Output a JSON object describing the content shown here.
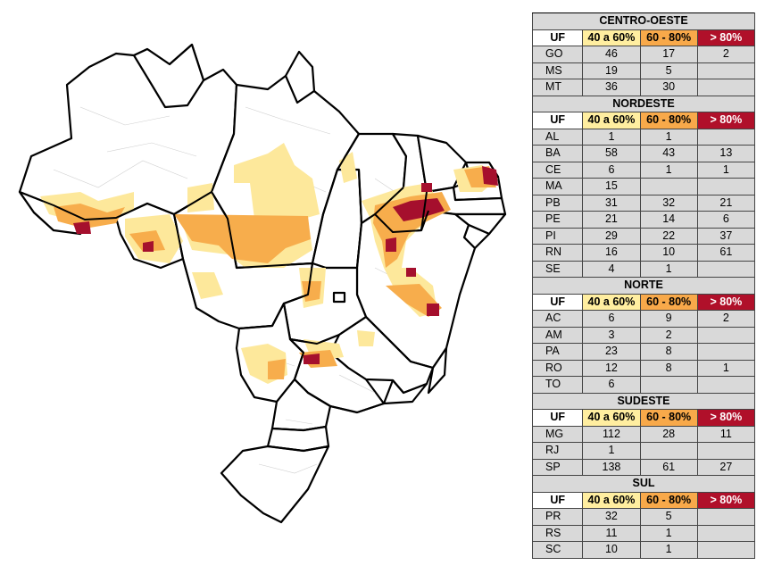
{
  "colors": {
    "class_40_60": "#fde89b",
    "class_60_80": "#f7ad4c",
    "class_80_plus": "#a50f2d",
    "state_fill": "#ffffff",
    "municipal_border": "#c8c8c8",
    "state_border": "#000000",
    "table_bg": "#d9d9d9"
  },
  "table": {
    "header": {
      "uf": "UF",
      "c1": "40 a 60%",
      "c2": "60 - 80%",
      "c3": "> 80%"
    },
    "regions": [
      {
        "name": "CENTRO-OESTE",
        "rows": [
          {
            "uf": "GO",
            "c1": "46",
            "c2": "17",
            "c3": "2"
          },
          {
            "uf": "MS",
            "c1": "19",
            "c2": "5",
            "c3": ""
          },
          {
            "uf": "MT",
            "c1": "36",
            "c2": "30",
            "c3": ""
          }
        ]
      },
      {
        "name": "NORDESTE",
        "rows": [
          {
            "uf": "AL",
            "c1": "1",
            "c2": "1",
            "c3": ""
          },
          {
            "uf": "BA",
            "c1": "58",
            "c2": "43",
            "c3": "13"
          },
          {
            "uf": "CE",
            "c1": "6",
            "c2": "1",
            "c3": "1"
          },
          {
            "uf": "MA",
            "c1": "15",
            "c2": "",
            "c3": ""
          },
          {
            "uf": "PB",
            "c1": "31",
            "c2": "32",
            "c3": "21"
          },
          {
            "uf": "PE",
            "c1": "21",
            "c2": "14",
            "c3": "6"
          },
          {
            "uf": "PI",
            "c1": "29",
            "c2": "22",
            "c3": "37"
          },
          {
            "uf": "RN",
            "c1": "16",
            "c2": "10",
            "c3": "61"
          },
          {
            "uf": "SE",
            "c1": "4",
            "c2": "1",
            "c3": ""
          }
        ]
      },
      {
        "name": "NORTE",
        "rows": [
          {
            "uf": "AC",
            "c1": "6",
            "c2": "9",
            "c3": "2"
          },
          {
            "uf": "AM",
            "c1": "3",
            "c2": "2",
            "c3": ""
          },
          {
            "uf": "PA",
            "c1": "23",
            "c2": "8",
            "c3": ""
          },
          {
            "uf": "RO",
            "c1": "12",
            "c2": "8",
            "c3": "1"
          },
          {
            "uf": "TO",
            "c1": "6",
            "c2": "",
            "c3": ""
          }
        ]
      },
      {
        "name": "SUDESTE",
        "rows": [
          {
            "uf": "MG",
            "c1": "112",
            "c2": "28",
            "c3": "11"
          },
          {
            "uf": "RJ",
            "c1": "1",
            "c2": "",
            "c3": ""
          },
          {
            "uf": "SP",
            "c1": "138",
            "c2": "61",
            "c3": "27"
          }
        ]
      },
      {
        "name": "SUL",
        "rows": [
          {
            "uf": "PR",
            "c1": "32",
            "c2": "5",
            "c3": ""
          },
          {
            "uf": "RS",
            "c1": "11",
            "c2": "1",
            "c3": ""
          },
          {
            "uf": "SC",
            "c1": "10",
            "c2": "1",
            "c3": ""
          }
        ]
      }
    ]
  }
}
